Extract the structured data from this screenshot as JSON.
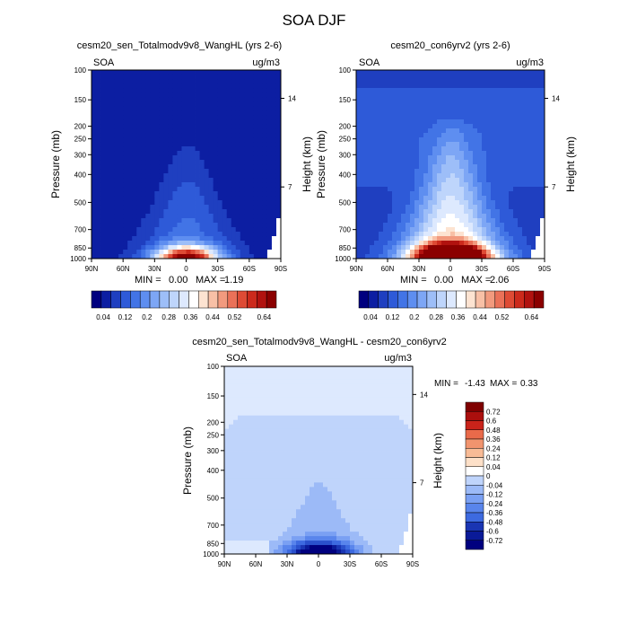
{
  "page_title": "SOA DJF",
  "colors": {
    "scale": [
      "#00007f",
      "#0c1ea2",
      "#1f3fc0",
      "#2e5ad8",
      "#4274e6",
      "#5e8ef0",
      "#7da6f5",
      "#9dbef8",
      "#bed5fb",
      "#dde9fe",
      "#ffffff",
      "#fde3d1",
      "#f8c0a6",
      "#f29a7e",
      "#ea7158",
      "#de4b35",
      "#cc2a1c",
      "#b1120f",
      "#8b0000"
    ],
    "diff_scale": [
      "#00007f",
      "#0a1a98",
      "#1a35b3",
      "#2a50cc",
      "#3d6ae0",
      "#5985ec",
      "#7aa0f3",
      "#9cbaf7",
      "#bfd4fb",
      "#dde9fe",
      "#ffffff",
      "#fde0c8",
      "#f8bb96",
      "#f1946e",
      "#e96a4a",
      "#dc4230",
      "#c9231a",
      "#ab0f0d",
      "#7f0000"
    ]
  },
  "chart_data": [
    {
      "type": "heatmap",
      "title": "cesm20_sen_Totalmodv9v8_WangHL (yrs 2-6)",
      "left_label": "SOA",
      "right_label": "ug/m3",
      "ylabel": "Pressure (mb)",
      "y2label": "Height (km)",
      "x_ticks": [
        "90N",
        "60N",
        "30N",
        "0",
        "30S",
        "60S",
        "90S"
      ],
      "y_ticks": [
        "100",
        "150",
        "200",
        "250",
        "300",
        "400",
        "500",
        "700",
        "850",
        "1000"
      ],
      "y2_ticks": [
        "14",
        "7"
      ],
      "min_label": "MIN =",
      "min_value": "0.00",
      "max_label": "MAX =",
      "max_value": "1.19",
      "colorbar_labels": [
        "0.04",
        "0.12",
        "0.2",
        "0.28",
        "0.36",
        "0.44",
        "0.52",
        "0.64"
      ],
      "plume": {
        "peak_lat": 0,
        "peak_pressure": 850,
        "top_pressure": 150,
        "peak_value": 1.19,
        "min_value": 0.0
      }
    },
    {
      "type": "heatmap",
      "title": "cesm20_con6yrv2 (yrs 2-6)",
      "left_label": "SOA",
      "right_label": "ug/m3",
      "ylabel": "Pressure (mb)",
      "y2label": "Height (km)",
      "x_ticks": [
        "90N",
        "60N",
        "30N",
        "0",
        "30S",
        "60S",
        "90S"
      ],
      "y_ticks": [
        "100",
        "150",
        "200",
        "250",
        "300",
        "400",
        "500",
        "700",
        "850",
        "1000"
      ],
      "y2_ticks": [
        "14",
        "7"
      ],
      "min_label": "MIN =",
      "min_value": "0.00",
      "max_label": "MAX =",
      "max_value": "2.06",
      "colorbar_labels": [
        "0.04",
        "0.12",
        "0.2",
        "0.28",
        "0.36",
        "0.44",
        "0.52",
        "0.64"
      ],
      "plume": {
        "peak_lat": 0,
        "peak_pressure": 850,
        "top_pressure": 150,
        "peak_value": 2.06,
        "min_value": 0.0
      }
    },
    {
      "type": "heatmap",
      "title": "cesm20_sen_Totalmodv9v8_WangHL - cesm20_con6yrv2",
      "left_label": "SOA",
      "right_label": "ug/m3",
      "ylabel": "Pressure (mb)",
      "y2label": "Height (km)",
      "x_ticks": [
        "90N",
        "60N",
        "30N",
        "0",
        "30S",
        "60S",
        "90S"
      ],
      "y_ticks": [
        "100",
        "150",
        "200",
        "250",
        "300",
        "400",
        "500",
        "700",
        "850",
        "1000"
      ],
      "y2_ticks": [
        "14",
        "7"
      ],
      "min_label": "MIN =",
      "min_value": "-1.43",
      "max_label": "MAX =",
      "max_value": "0.33",
      "colorbar_labels": [
        "0.72",
        "0.6",
        "0.48",
        "0.36",
        "0.24",
        "0.12",
        "0.04",
        "0",
        "-0.04",
        "-0.12",
        "-0.24",
        "-0.36",
        "-0.48",
        "-0.6",
        "-0.72"
      ],
      "plume": {
        "peak_lat": 0,
        "peak_pressure": 850,
        "top_pressure": 150,
        "peak_value": -1.43,
        "min_value": 0.33
      }
    }
  ]
}
